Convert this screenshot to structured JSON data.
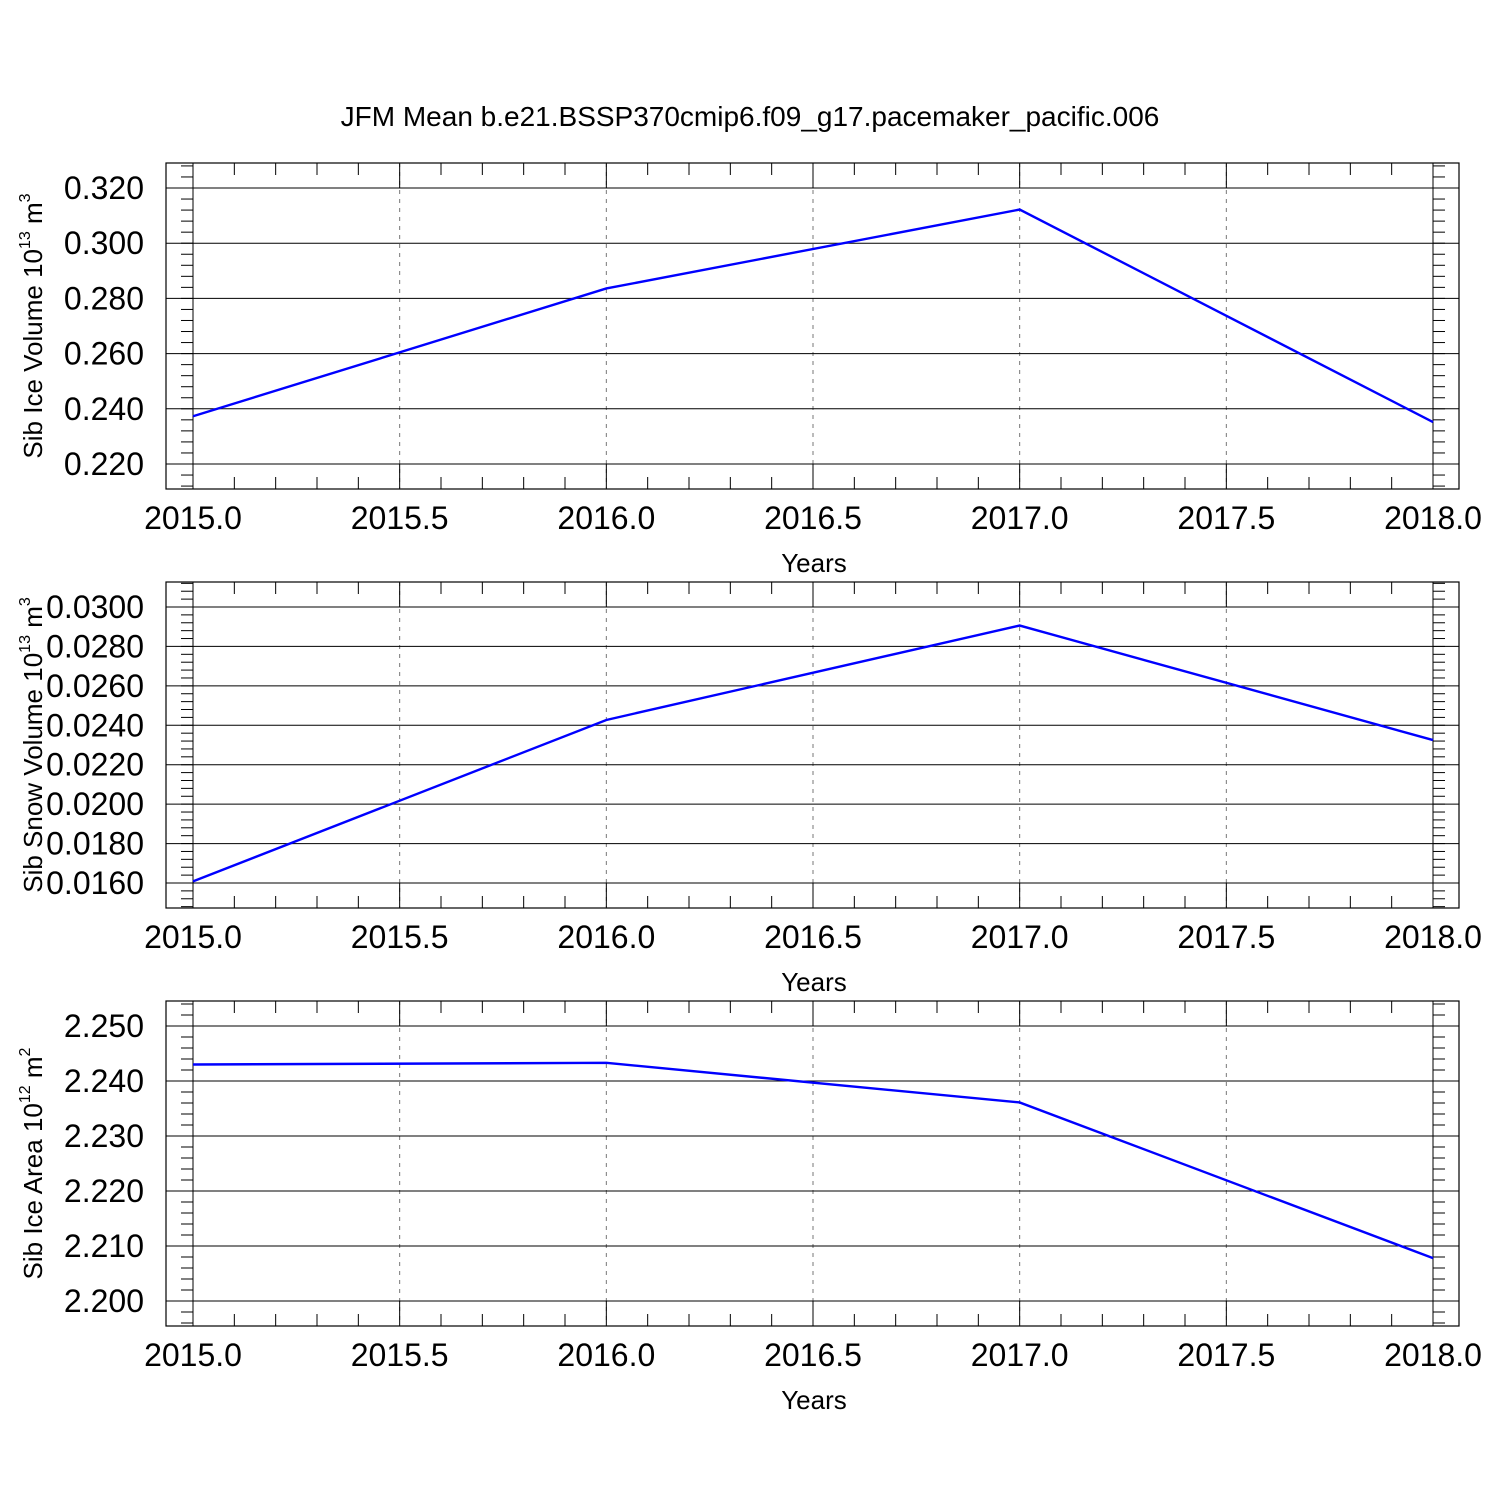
{
  "figure_title": "JFM Mean b.e21.BSSP370cmip6.f09_g17.pacemaker_pacific.006",
  "colors": {
    "series": "#0000ff",
    "grid": "#777777",
    "frame": "#000000"
  },
  "chart_data": [
    {
      "type": "line",
      "title": "",
      "xlabel": "Years",
      "ylabel": {
        "text": "Sib Ice Volume 10",
        "sup1": "13",
        "mid": " m",
        "sup2": "3"
      },
      "xlim": [
        2015.0,
        2018.0
      ],
      "ylim": [
        0.22,
        0.32
      ],
      "xticks": [
        "2015.0",
        "2015.5",
        "2016.0",
        "2016.5",
        "2017.0",
        "2017.5",
        "2018.0"
      ],
      "yticks": [
        "0.220",
        "0.240",
        "0.260",
        "0.280",
        "0.300",
        "0.320"
      ],
      "grid": "vertical dashed at major x ticks",
      "x": [
        2015,
        2016,
        2017,
        2018
      ],
      "y": [
        0.2373,
        0.2836,
        0.3122,
        0.2352
      ]
    },
    {
      "type": "line",
      "title": "",
      "xlabel": "Years",
      "ylabel": {
        "text": "Sib Snow Volume 10",
        "sup1": "13",
        "mid": " m",
        "sup2": "3"
      },
      "xlim": [
        2015.0,
        2018.0
      ],
      "ylim": [
        0.016,
        0.03
      ],
      "xticks": [
        "2015.0",
        "2015.5",
        "2016.0",
        "2016.5",
        "2017.0",
        "2017.5",
        "2018.0"
      ],
      "yticks": [
        "0.0160",
        "0.0180",
        "0.0200",
        "0.0220",
        "0.0240",
        "0.0260",
        "0.0280",
        "0.0300"
      ],
      "grid": "vertical dashed at major x ticks",
      "x": [
        2015,
        2016,
        2017,
        2018
      ],
      "y": [
        0.01608,
        0.02427,
        0.02906,
        0.02325
      ]
    },
    {
      "type": "line",
      "title": "",
      "xlabel": "Years",
      "ylabel": {
        "text": "Sib Ice Area 10",
        "sup1": "12",
        "mid": " m",
        "sup2": "2"
      },
      "xlim": [
        2015.0,
        2018.0
      ],
      "ylim": [
        2.2,
        2.25
      ],
      "xticks": [
        "2015.0",
        "2015.5",
        "2016.0",
        "2016.5",
        "2017.0",
        "2017.5",
        "2018.0"
      ],
      "yticks": [
        "2.200",
        "2.210",
        "2.220",
        "2.230",
        "2.240",
        "2.250"
      ],
      "grid": "vertical dashed at major x ticks",
      "x": [
        2015,
        2016,
        2017,
        2018
      ],
      "y": [
        2.243,
        2.2433,
        2.2361,
        2.2078
      ]
    }
  ]
}
